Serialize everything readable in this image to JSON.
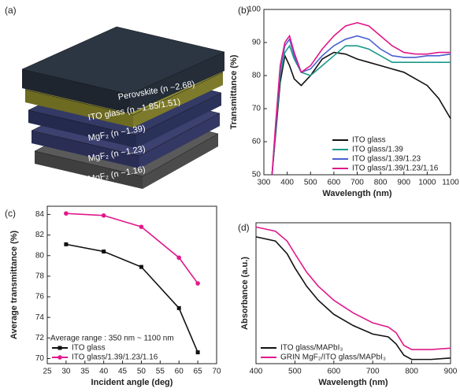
{
  "illustration": {
    "panel_label": "(a)",
    "layers": [
      "Perovskite (n ~2.68)",
      "ITO glass (n ~1.85/1.51)",
      "MgF₂ (n ~1.39)",
      "MgF₂ (n ~1.23)",
      "MgF₂ (n ~1.16)"
    ]
  },
  "chart_data": [
    {
      "type": "line",
      "panel_label": "(b)",
      "x_label": "Wavelength (nm)",
      "y_label": "Transmittance (%)",
      "x": [
        335,
        350,
        370,
        390,
        410,
        430,
        460,
        500,
        550,
        600,
        650,
        700,
        750,
        800,
        850,
        900,
        950,
        1000,
        1050,
        1100
      ],
      "xlim": [
        300,
        1100
      ],
      "xticks": [
        300,
        400,
        500,
        600,
        700,
        800,
        900,
        1000,
        1100
      ],
      "ylim": [
        50,
        100
      ],
      "yticks": [
        50,
        60,
        70,
        80,
        90,
        100
      ],
      "legend": "lower right",
      "series": [
        {
          "name": "ITO glass",
          "color": "#111111",
          "values": [
            50,
            62,
            78,
            86,
            83,
            79,
            77,
            80,
            85,
            87,
            86.5,
            85,
            84,
            83,
            82,
            81,
            79,
            77,
            73,
            67
          ]
        },
        {
          "name": "ITO glass/1.39",
          "color": "#1a9a8a",
          "values": [
            50,
            63,
            80,
            87,
            89,
            85,
            81,
            80,
            83,
            86,
            89,
            89,
            88,
            86,
            84,
            84,
            84,
            84,
            84,
            84
          ]
        },
        {
          "name": "ITO glass/1.39/1.23",
          "color": "#4a5fd0",
          "values": [
            50,
            64,
            82,
            89,
            91,
            86,
            81,
            82,
            86,
            89,
            91,
            92,
            91,
            88,
            86,
            85.5,
            85.5,
            86,
            86,
            86.5
          ]
        },
        {
          "name": "ITO glass/1.39/1.23/1.16",
          "color": "#e0188a",
          "values": [
            50,
            65,
            83,
            90,
            92,
            87,
            81,
            83,
            88,
            92,
            95,
            96,
            95,
            92,
            89,
            87,
            86.5,
            86.5,
            87,
            87
          ]
        }
      ]
    },
    {
      "type": "line",
      "panel_label": "(c)",
      "x_label": "Incident angle (deg)",
      "y_label": "Average transmittance (%)",
      "annotation": "Average range : 350 nm ~ 1100 nm",
      "x": [
        30,
        40,
        50,
        60,
        65
      ],
      "xlim": [
        25,
        70
      ],
      "xticks": [
        25,
        30,
        35,
        40,
        45,
        50,
        55,
        60,
        65,
        70
      ],
      "ylim": [
        69.5,
        84.8
      ],
      "yticks": [
        70,
        72,
        74,
        76,
        78,
        80,
        82,
        84
      ],
      "legend": "lower left",
      "series": [
        {
          "name": "ITO glass",
          "color": "#111111",
          "marker": "square",
          "values": [
            81.1,
            80.4,
            78.9,
            74.9,
            70.6
          ]
        },
        {
          "name": "ITO glass/1.39/1.23/1.16",
          "color": "#e0188a",
          "marker": "circle",
          "values": [
            84.1,
            83.9,
            82.8,
            79.8,
            77.3
          ]
        }
      ]
    },
    {
      "type": "line",
      "panel_label": "(d)",
      "x_label": "Wavelength (nm)",
      "y_label": "Absorbance (a.u.)",
      "x": [
        400,
        450,
        480,
        500,
        530,
        560,
        600,
        650,
        700,
        740,
        760,
        780,
        800,
        850,
        900
      ],
      "xlim": [
        400,
        900
      ],
      "xticks": [
        400,
        500,
        600,
        700,
        800,
        900
      ],
      "ylim": [
        0,
        1
      ],
      "legend": "lower left",
      "series": [
        {
          "name": "ITO glass/MAPbI₃",
          "color": "#111111",
          "values": [
            0.9,
            0.87,
            0.78,
            0.68,
            0.55,
            0.45,
            0.35,
            0.27,
            0.21,
            0.19,
            0.14,
            0.06,
            0.03,
            0.03,
            0.04
          ]
        },
        {
          "name": "GRIN MgF₂/ITO glass/MAPbI₃",
          "color": "#e0188a",
          "values": [
            0.97,
            0.94,
            0.87,
            0.78,
            0.65,
            0.55,
            0.45,
            0.36,
            0.29,
            0.26,
            0.22,
            0.13,
            0.1,
            0.1,
            0.11
          ]
        }
      ]
    }
  ]
}
